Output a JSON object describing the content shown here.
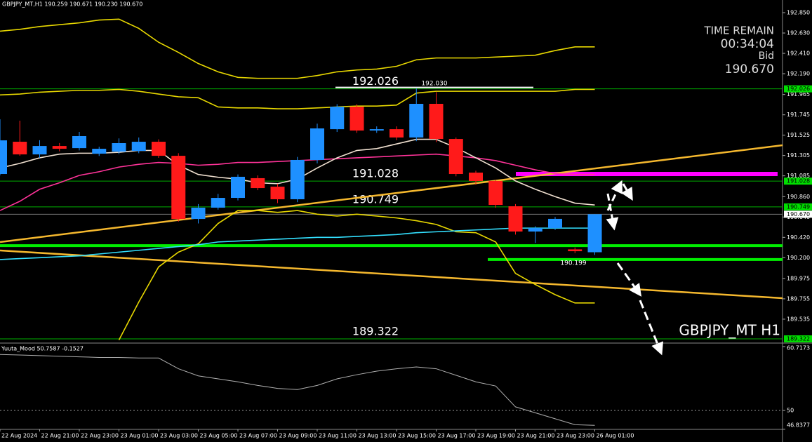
{
  "chart_data": {
    "type": "candlestick",
    "header": "GBPJPY_MT,H1  190.259 190.671 190.230 190.670",
    "watermark": "GBPJPY_MT H1",
    "info": [
      "TIME REMAIN",
      "00:34:04",
      "Bid",
      "190.670"
    ],
    "annotations": [
      "192.030",
      "190.199"
    ],
    "categories": [
      "22 Aug 2024",
      null,
      "22 Aug 21:00",
      null,
      "22 Aug 23:00",
      null,
      "23 Aug 01:00",
      null,
      "23 Aug 03:00",
      null,
      "23 Aug 05:00",
      null,
      "23 Aug 07:00",
      null,
      "23 Aug 09:00",
      null,
      "23 Aug 11:00",
      null,
      "23 Aug 13:00",
      null,
      "23 Aug 15:00",
      null,
      "23 Aug 17:00",
      null,
      "23 Aug 19:00",
      null,
      "23 Aug 21:00",
      null,
      "23 Aug 23:00",
      null,
      "26 Aug 01:00"
    ],
    "open": [
      191.105,
      191.454,
      191.317,
      191.408,
      191.385,
      191.325,
      191.347,
      191.355,
      191.454,
      191.302,
      190.619,
      190.741,
      190.847,
      191.06,
      190.968,
      190.832,
      191.257,
      191.59,
      191.833,
      191.575,
      191.59,
      191.5,
      191.864,
      191.484,
      191.12,
      191.029,
      190.756,
      190.483,
      190.52,
      190.29,
      190.259
    ],
    "close": [
      191.469,
      191.317,
      191.408,
      191.378,
      191.515,
      191.378,
      191.439,
      191.454,
      191.302,
      190.619,
      190.741,
      190.847,
      191.075,
      190.953,
      190.832,
      191.257,
      191.598,
      191.833,
      191.575,
      191.59,
      191.5,
      191.864,
      191.484,
      191.105,
      191.029,
      190.771,
      190.483,
      190.52,
      190.62,
      190.27,
      190.67
    ],
    "high": [
      191.697,
      191.682,
      191.47,
      191.44,
      191.56,
      191.4,
      191.49,
      191.5,
      191.48,
      191.33,
      190.78,
      190.89,
      191.1,
      191.09,
      191.0,
      191.29,
      191.65,
      191.86,
      191.86,
      191.62,
      191.62,
      192.03,
      191.99,
      191.5,
      191.14,
      191.04,
      190.78,
      190.54,
      190.64,
      190.31,
      190.671
    ],
    "low": [
      191.09,
      191.302,
      191.28,
      191.35,
      191.36,
      191.3,
      191.32,
      191.33,
      191.28,
      190.59,
      190.57,
      190.72,
      190.82,
      190.93,
      190.79,
      190.8,
      191.22,
      191.56,
      191.55,
      191.55,
      191.47,
      191.46,
      191.45,
      191.08,
      190.99,
      190.74,
      190.45,
      190.36,
      190.5,
      190.25,
      190.23
    ],
    "up_color": "#1e90ff",
    "down_color": "#ff1a1a",
    "series": [
      {
        "color": "#e8d800",
        "values": [
          192.65,
          192.67,
          192.7,
          192.72,
          192.74,
          192.77,
          192.78,
          192.68,
          192.53,
          192.42,
          192.3,
          192.21,
          192.15,
          192.14,
          192.14,
          192.14,
          192.17,
          192.21,
          192.23,
          192.24,
          192.27,
          192.34,
          192.36,
          192.36,
          192.36,
          192.37,
          192.38,
          192.39,
          192.44,
          192.48,
          192.48
        ]
      },
      {
        "color": "#e8d800",
        "values": [
          191.96,
          191.97,
          191.99,
          192.0,
          192.01,
          192.01,
          192.02,
          192.0,
          191.97,
          191.94,
          191.93,
          191.83,
          191.82,
          191.82,
          191.81,
          191.81,
          191.82,
          191.83,
          191.84,
          191.84,
          191.85,
          191.98,
          192.0,
          192.0,
          192.0,
          192.0,
          192.0,
          192.0,
          192.0,
          192.02,
          192.02
        ]
      },
      {
        "color": "#e8d800",
        "values": [
          null,
          null,
          null,
          null,
          null,
          null,
          189.31,
          189.72,
          190.1,
          190.26,
          190.35,
          190.57,
          190.71,
          190.71,
          190.69,
          190.71,
          190.67,
          190.65,
          190.67,
          190.65,
          190.63,
          190.6,
          190.56,
          190.48,
          190.47,
          190.37,
          190.03,
          189.91,
          189.8,
          189.71,
          189.71
        ]
      },
      {
        "color": "#ff3399",
        "values": [
          190.71,
          190.81,
          190.94,
          191.01,
          191.09,
          191.13,
          191.18,
          191.21,
          191.23,
          191.22,
          191.2,
          191.21,
          191.23,
          191.23,
          191.24,
          191.25,
          191.26,
          191.27,
          191.28,
          191.29,
          191.3,
          191.31,
          191.32,
          191.3,
          191.28,
          191.25,
          191.2,
          191.15,
          191.11,
          191.1,
          191.1
        ]
      },
      {
        "color": "#f0e0d0",
        "values": [
          191.17,
          191.22,
          191.28,
          191.32,
          191.33,
          191.33,
          191.34,
          191.36,
          191.36,
          191.2,
          191.1,
          191.07,
          191.05,
          191.01,
          191.0,
          191.05,
          191.17,
          191.28,
          191.36,
          191.38,
          191.43,
          191.48,
          191.48,
          191.39,
          191.28,
          191.17,
          191.03,
          190.94,
          190.86,
          190.79,
          190.77
        ]
      },
      {
        "color": "#33e0ff",
        "values": [
          190.18,
          190.19,
          190.2,
          190.21,
          190.22,
          190.24,
          190.26,
          190.28,
          190.3,
          190.32,
          190.34,
          190.37,
          190.38,
          190.39,
          190.4,
          190.41,
          190.42,
          190.42,
          190.43,
          190.44,
          190.45,
          190.47,
          190.48,
          190.49,
          190.5,
          190.51,
          190.52,
          190.52,
          190.52,
          190.52,
          190.52
        ]
      }
    ],
    "trendlines": [
      {
        "color": "#f5b82e",
        "values": [
          190.369,
          191.416
        ]
      },
      {
        "color": "#f5b82e",
        "values": [
          190.278,
          189.762
        ]
      }
    ],
    "hlines": [
      {
        "color": "#ff00ff",
        "value": 191.105
      },
      {
        "color": "#00ee00",
        "value": 190.33
      },
      {
        "color": "#00ee00",
        "value": 190.18
      }
    ],
    "levels": [
      192.026,
      191.028,
      190.749,
      189.322
    ],
    "level_color": "#00b000",
    "price_labels": [
      192.026,
      191.028,
      190.749,
      {
        "value": 190.67,
        "label": "190.670"
      },
      189.322
    ],
    "ylim": [
      189.284,
      192.987
    ],
    "yticks": [
      {
        "value": 192.85,
        "label": "192.850"
      },
      {
        "value": 192.63,
        "label": "192.630"
      },
      {
        "value": 192.41,
        "label": "192.410"
      },
      {
        "value": 192.19,
        "label": "192.190"
      },
      191.965,
      191.745,
      191.525,
      191.305,
      191.085,
      {
        "value": 190.86,
        "label": "190.860"
      },
      {
        "value": 190.64,
        "label": "190.640"
      },
      {
        "value": 190.42,
        "label": "190.420"
      },
      {
        "value": 190.2,
        "label": "190.200"
      },
      189.975,
      189.755,
      189.535
    ],
    "subchart": {
      "type": "line",
      "title": "Yuuta_Mood 50.7587 -0.1527",
      "color": "#b0b0b0",
      "values": [
        59.4,
        59.3,
        59.2,
        59.1,
        59.0,
        58.9,
        58.9,
        58.8,
        58.8,
        57.0,
        55.8,
        55.3,
        54.8,
        54.2,
        53.7,
        53.5,
        54.2,
        55.3,
        56.0,
        56.6,
        57.0,
        57.3,
        57.0,
        55.9,
        54.8,
        54.1,
        50.6,
        49.6,
        48.6,
        47.6,
        47.5
      ],
      "ylim": [
        46.82,
        61.19
      ],
      "yticks": [
        60.7173,
        50,
        46.8377
      ],
      "levels": [
        50
      ]
    }
  }
}
